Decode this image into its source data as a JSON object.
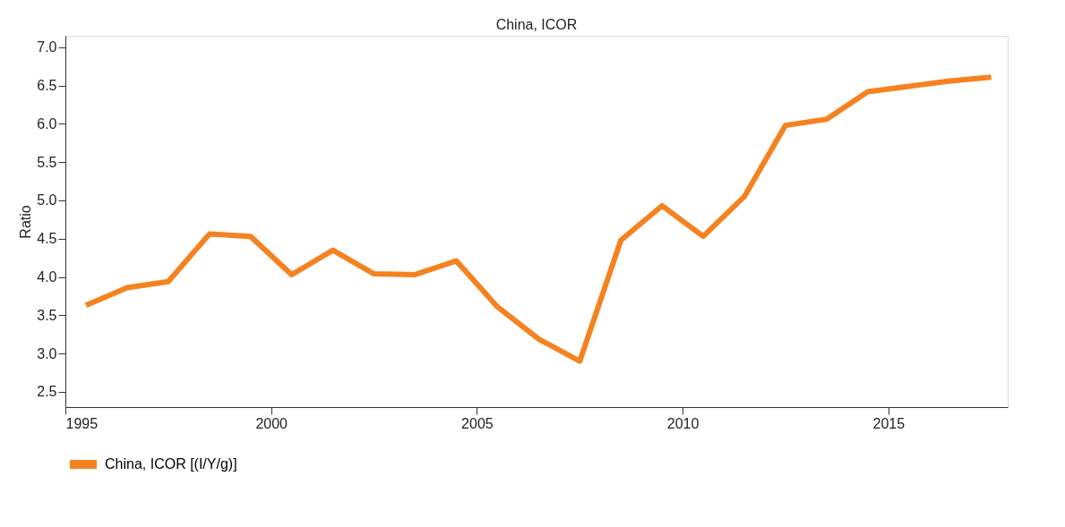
{
  "chart_data": {
    "type": "line",
    "title": "China, ICOR",
    "ylabel": "Ratio",
    "x": [
      1995.5,
      1996.5,
      1997.5,
      1998.5,
      1999.5,
      2000.5,
      2001.5,
      2002.5,
      2003.5,
      2004.5,
      2005.5,
      2006.5,
      2007.5,
      2008.5,
      2009.5,
      2010.5,
      2011.5,
      2012.5,
      2013.5,
      2014.5,
      2015.5,
      2016.5,
      2017.5
    ],
    "series": [
      {
        "name": "China, ICOR [(I/Y/g)]",
        "color": "#f58220",
        "values": [
          3.63,
          3.86,
          3.94,
          4.56,
          4.53,
          4.03,
          4.35,
          4.04,
          4.03,
          4.21,
          3.61,
          3.19,
          2.9,
          4.48,
          4.93,
          4.53,
          5.05,
          5.98,
          6.06,
          6.42,
          6.49,
          6.56,
          6.61
        ]
      }
    ],
    "xlim": [
      1995,
      2017.9
    ],
    "xticks": [
      1995,
      2000,
      2005,
      2010,
      2015
    ],
    "ylim": [
      2.3,
      7.15
    ],
    "yticks": [
      {
        "value": 2.5,
        "label": "2.5"
      },
      {
        "value": 3,
        "label": "3.0"
      },
      {
        "value": 3.5,
        "label": "3.5"
      },
      {
        "value": 4,
        "label": "4.0"
      },
      {
        "value": 4.5,
        "label": "4.5"
      },
      {
        "value": 5,
        "label": "5.0"
      },
      {
        "value": 5.5,
        "label": "5.5"
      },
      {
        "value": 6,
        "label": "6.0"
      },
      {
        "value": 6.5,
        "label": "6.5"
      },
      {
        "value": 7,
        "label": "7.0"
      }
    ],
    "grid": false,
    "legend": "bottom",
    "marker": "none",
    "line_style": "solid"
  }
}
